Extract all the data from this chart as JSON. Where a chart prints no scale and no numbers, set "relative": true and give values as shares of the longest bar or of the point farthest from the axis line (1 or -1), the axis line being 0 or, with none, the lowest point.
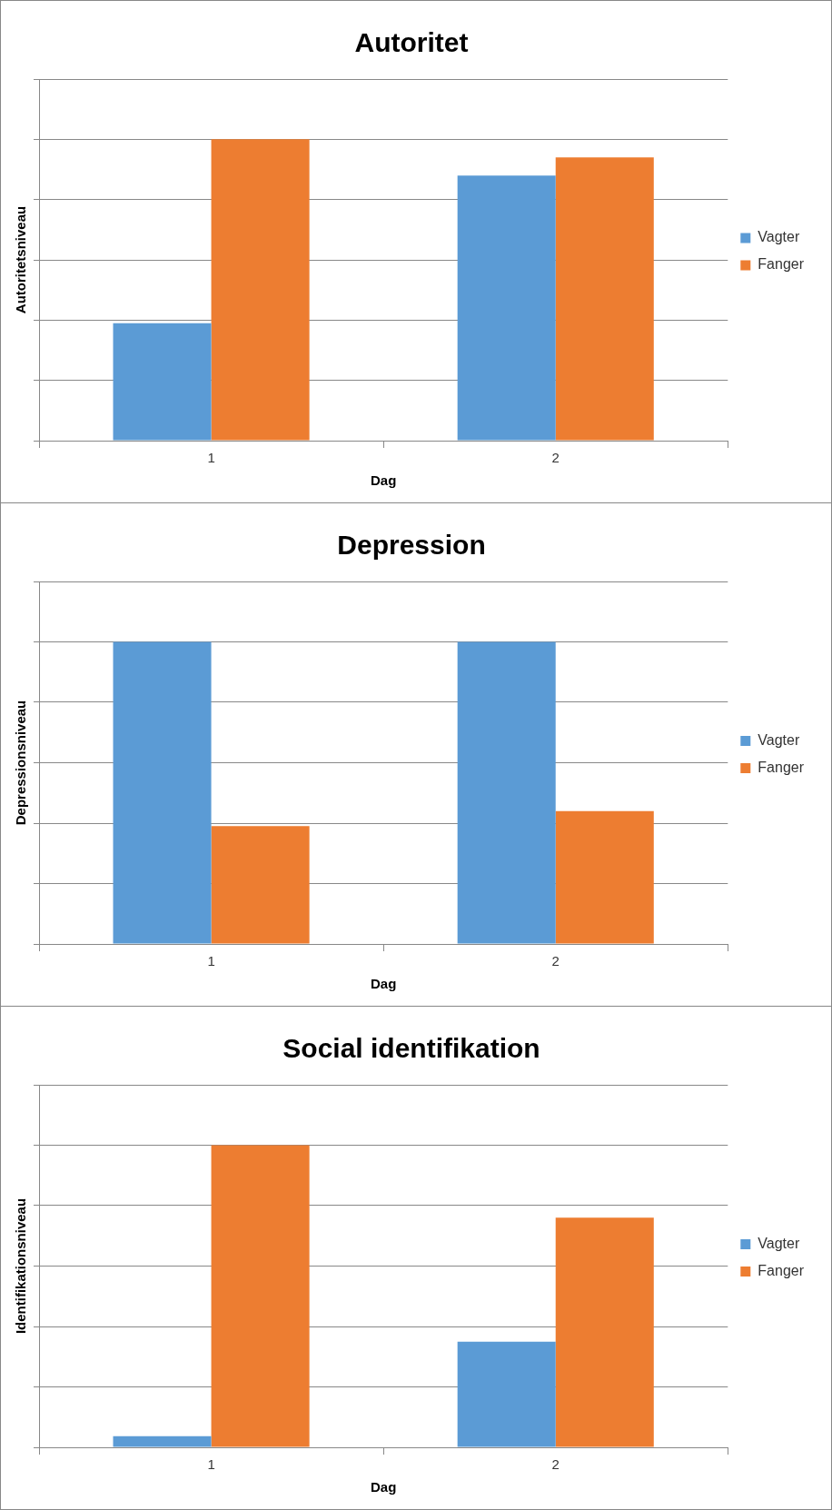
{
  "chart_data": [
    {
      "type": "bar",
      "title": "Autoritet",
      "xlabel": "Dag",
      "ylabel": "Autoritetsniveau",
      "categories": [
        "1",
        "2"
      ],
      "relative": true,
      "grid": "y",
      "legend": "right",
      "series": [
        {
          "name": "Vagter",
          "color": "#5b9bd5",
          "values": [
            0.39,
            0.88
          ]
        },
        {
          "name": "Fanger",
          "color": "#ed7d31",
          "values": [
            1,
            0.94
          ]
        }
      ]
    },
    {
      "type": "bar",
      "title": "Depression",
      "xlabel": "Dag",
      "ylabel": "Depressionsniveau",
      "categories": [
        "1",
        "2"
      ],
      "relative": true,
      "grid": "y",
      "legend": "right",
      "series": [
        {
          "name": "Vagter",
          "color": "#5b9bd5",
          "values": [
            1,
            1
          ]
        },
        {
          "name": "Fanger",
          "color": "#ed7d31",
          "values": [
            0.39,
            0.44
          ]
        }
      ]
    },
    {
      "type": "bar",
      "title": "Social identifikation",
      "xlabel": "Dag",
      "ylabel": "Identifikationsniveau",
      "categories": [
        "1",
        "2"
      ],
      "relative": true,
      "grid": "y",
      "legend": "right",
      "series": [
        {
          "name": "Vagter",
          "color": "#5b9bd5",
          "values": [
            0.037,
            0.35
          ]
        },
        {
          "name": "Fanger",
          "color": "#ed7d31",
          "values": [
            1,
            0.76
          ]
        }
      ]
    }
  ]
}
